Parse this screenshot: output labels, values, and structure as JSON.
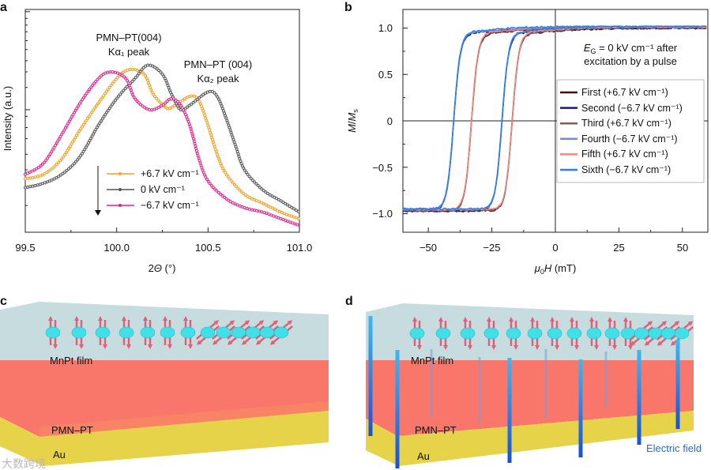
{
  "panels": {
    "a": "a",
    "b": "b",
    "c": "c",
    "d": "d"
  },
  "chart_data": [
    {
      "type": "line",
      "panel": "a",
      "xlabel_prefix": "2",
      "xlabel_var": "Θ",
      "xlabel_unit": " (°)",
      "ylabel": "Intensity (a.u.)",
      "yscale": "log",
      "xlim": [
        99.5,
        101.0
      ],
      "ylim_normalized_log": [
        0,
        1
      ],
      "xticks": [
        "99.5",
        "100.0",
        "100.5",
        "101.0"
      ],
      "annotations": [
        {
          "line1": "PMN–PT(004)",
          "line2": "Kα₁ peak"
        },
        {
          "line1": "PMN–PT (004)",
          "line2": "Kα₂ peak"
        }
      ],
      "series": [
        {
          "name": "+6.7 kV cm⁻¹",
          "color": "#f7a01e",
          "x": [
            99.5,
            99.6,
            99.7,
            99.8,
            99.9,
            100.0,
            100.07,
            100.15,
            100.2,
            100.27,
            100.3,
            100.4,
            100.45,
            100.5,
            100.55,
            100.6,
            100.7,
            100.8,
            100.9,
            101.0
          ],
          "y": [
            0.24,
            0.26,
            0.33,
            0.46,
            0.58,
            0.69,
            0.73,
            0.71,
            0.62,
            0.56,
            0.56,
            0.61,
            0.59,
            0.48,
            0.35,
            0.26,
            0.17,
            0.13,
            0.09,
            0.06
          ]
        },
        {
          "name": "0 kV cm⁻¹",
          "color": "#555555",
          "x": [
            99.5,
            99.6,
            99.7,
            99.8,
            99.9,
            100.0,
            100.1,
            100.17,
            100.25,
            100.3,
            100.35,
            100.4,
            100.5,
            100.55,
            100.6,
            100.65,
            100.7,
            100.8,
            100.9,
            101.0
          ],
          "y": [
            0.2,
            0.22,
            0.26,
            0.34,
            0.48,
            0.6,
            0.69,
            0.75,
            0.71,
            0.62,
            0.55,
            0.57,
            0.63,
            0.61,
            0.51,
            0.39,
            0.28,
            0.19,
            0.14,
            0.09
          ]
        },
        {
          "name": "−6.7 kV cm⁻¹",
          "color": "#e8208c",
          "x": [
            99.5,
            99.6,
            99.7,
            99.8,
            99.9,
            99.97,
            100.05,
            100.1,
            100.18,
            100.25,
            100.3,
            100.35,
            100.4,
            100.45,
            100.5,
            100.6,
            100.7,
            100.8,
            100.9,
            101.0
          ],
          "y": [
            0.26,
            0.31,
            0.44,
            0.58,
            0.69,
            0.72,
            0.69,
            0.6,
            0.55,
            0.57,
            0.6,
            0.57,
            0.48,
            0.33,
            0.23,
            0.15,
            0.11,
            0.09,
            0.06,
            0.03
          ]
        }
      ],
      "legend_placement": "bottom-center"
    },
    {
      "type": "line",
      "panel": "b",
      "xlabel_mu": "μ",
      "xlabel_sub": "0",
      "xlabel_var": "H",
      "xlabel_unit": " (mT)",
      "ylabel_M": "M",
      "ylabel_slash": "/",
      "ylabel_Ms": "M",
      "ylabel_s": "s",
      "xlim": [
        -60,
        60
      ],
      "ylim": [
        -1.2,
        1.2
      ],
      "xticks": [
        {
          "v": -50,
          "t": "−50"
        },
        {
          "v": -25,
          "t": "−25"
        },
        {
          "v": 0,
          "t": "0"
        },
        {
          "v": 25,
          "t": "25"
        },
        {
          "v": 50,
          "t": "50"
        }
      ],
      "yticks": [
        {
          "v": 1.0,
          "t": "1.0"
        },
        {
          "v": 0.5,
          "t": "0.5"
        },
        {
          "v": 0,
          "t": "0"
        },
        {
          "v": -0.5,
          "t": "−0.5"
        },
        {
          "v": -1.0,
          "t": "−1.0"
        }
      ],
      "annotation": {
        "E": "E",
        "G": "G",
        "rest": " = 0 kV cm⁻¹ after",
        "line2": "excitation by a pulse"
      },
      "series": [
        {
          "name": "First (+6.7 kV cm⁻¹)",
          "color": "#4a0c10",
          "coercive_fields_mT": [
            -33,
            -17
          ]
        },
        {
          "name": "Second (−6.7 kV cm⁻¹)",
          "color": "#101c88",
          "coercive_fields_mT": [
            -40,
            -21
          ]
        },
        {
          "name": "Third (+6.7 kV cm⁻¹)",
          "color": "#8c5a52",
          "coercive_fields_mT": [
            -33,
            -17
          ]
        },
        {
          "name": "Fourth (−6.7 kV cm⁻¹)",
          "color": "#7a86e6",
          "coercive_fields_mT": [
            -40,
            -21
          ]
        },
        {
          "name": "Fifth (+6.7 kV cm⁻¹)",
          "color": "#f08a82",
          "coercive_fields_mT": [
            -33,
            -17
          ]
        },
        {
          "name": "Sixth (−6.7 kV cm⁻¹)",
          "color": "#2a80e0",
          "coercive_fields_mT": [
            -40,
            -21
          ]
        }
      ],
      "legend_placement": "right"
    }
  ],
  "diagram_c": {
    "film": "MnPt film",
    "substrate": "PMN–PT",
    "electrode": "Au"
  },
  "diagram_d": {
    "film": "MnPt film",
    "substrate": "PMN–PT",
    "electrode": "Au",
    "field": "Electric field"
  },
  "watermark": "大数跨境",
  "colors": {
    "film": "#c7dcde",
    "pmnpt": "#f8776a",
    "au": "#e6d34a",
    "spin": "#3fe0e8",
    "arrow": "#e0607a",
    "field": "#1f7fe0"
  }
}
